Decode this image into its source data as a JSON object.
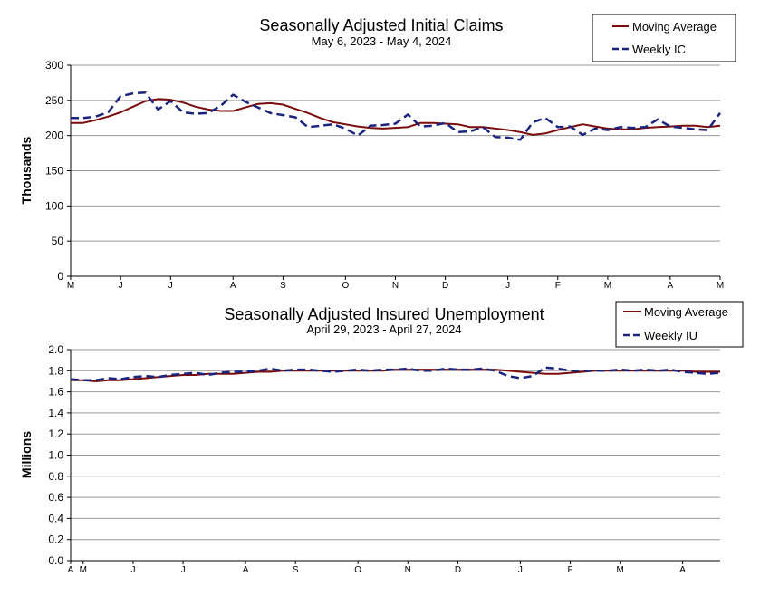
{
  "chart_data": [
    {
      "type": "line",
      "title": "Seasonally Adjusted Initial Claims",
      "subtitle": "May 6, 2023 - May 4, 2024",
      "xlabel": "",
      "ylabel": "Thousands",
      "ylim": [
        0,
        300
      ],
      "yticks": [
        "0",
        "50",
        "100",
        "150",
        "200",
        "250",
        "300"
      ],
      "ytick_values": [
        0,
        50,
        100,
        150,
        200,
        250,
        300
      ],
      "xtick_labels": [
        "M",
        "J",
        "J",
        "A",
        "S",
        "O",
        "N",
        "D",
        "J",
        "F",
        "M",
        "A",
        "M"
      ],
      "xtick_weeks": [
        0,
        4,
        8,
        13,
        17,
        22,
        26,
        30,
        35,
        39,
        43,
        48,
        52
      ],
      "num_weeks": 53,
      "grid": true,
      "legend": [
        "Moving Average",
        "Weekly IC"
      ],
      "series": [
        {
          "name": "Moving Average",
          "color": "#7a0c0c",
          "style": "solid",
          "values": [
            218,
            218,
            222,
            227,
            233,
            241,
            249,
            252,
            251,
            247,
            241,
            237,
            235,
            235,
            240,
            245,
            246,
            244,
            238,
            232,
            225,
            219,
            216,
            213,
            211,
            210,
            211,
            212,
            218,
            218,
            217,
            216,
            212,
            212,
            210,
            208,
            205,
            201,
            203,
            208,
            212,
            216,
            213,
            210,
            209,
            209,
            211,
            212,
            213,
            214,
            214,
            212,
            214
          ]
        },
        {
          "name": "Weekly IC",
          "color": "#1a237e",
          "style": "dashed",
          "values": [
            225,
            225,
            227,
            233,
            256,
            260,
            261,
            237,
            249,
            233,
            231,
            232,
            242,
            258,
            248,
            240,
            232,
            229,
            226,
            212,
            214,
            216,
            210,
            200,
            214,
            215,
            217,
            230,
            213,
            214,
            218,
            205,
            206,
            212,
            198,
            197,
            194,
            219,
            225,
            212,
            213,
            201,
            210,
            208,
            212,
            211,
            212,
            223,
            213,
            211,
            209,
            208,
            232
          ]
        }
      ]
    },
    {
      "type": "line",
      "title": "Seasonally Adjusted Insured Unemployment",
      "subtitle": "April 29, 2023 - April 27, 2024",
      "xlabel": "",
      "ylabel": "Millions",
      "ylim": [
        0.0,
        2.0
      ],
      "yticks": [
        "0.0",
        "0.2",
        "0.4",
        "0.6",
        "0.8",
        "1.0",
        "1.2",
        "1.4",
        "1.6",
        "1.8",
        "2.0"
      ],
      "ytick_values": [
        0.0,
        0.2,
        0.4,
        0.6,
        0.8,
        1.0,
        1.2,
        1.4,
        1.6,
        1.8,
        2.0
      ],
      "xtick_labels": [
        "A",
        "M",
        "J",
        "J",
        "A",
        "S",
        "O",
        "N",
        "D",
        "J",
        "F",
        "M",
        "A"
      ],
      "xtick_weeks": [
        0,
        1,
        5,
        9,
        14,
        18,
        23,
        27,
        31,
        36,
        40,
        44,
        49
      ],
      "num_weeks": 53,
      "grid": true,
      "legend": [
        "Moving Average",
        "Weekly IU"
      ],
      "series": [
        {
          "name": "Moving Average",
          "color": "#7a0c0c",
          "style": "solid",
          "values": [
            1.71,
            1.71,
            1.7,
            1.71,
            1.71,
            1.72,
            1.73,
            1.74,
            1.75,
            1.76,
            1.76,
            1.77,
            1.77,
            1.77,
            1.78,
            1.79,
            1.79,
            1.8,
            1.8,
            1.8,
            1.8,
            1.8,
            1.8,
            1.8,
            1.8,
            1.8,
            1.81,
            1.81,
            1.81,
            1.81,
            1.81,
            1.81,
            1.81,
            1.81,
            1.81,
            1.8,
            1.79,
            1.78,
            1.77,
            1.77,
            1.78,
            1.79,
            1.8,
            1.8,
            1.8,
            1.8,
            1.8,
            1.8,
            1.8,
            1.8,
            1.79,
            1.79,
            1.79
          ]
        },
        {
          "name": "Weekly IU",
          "color": "#1a237e",
          "style": "dashed",
          "values": [
            1.72,
            1.71,
            1.71,
            1.73,
            1.72,
            1.74,
            1.75,
            1.74,
            1.76,
            1.77,
            1.78,
            1.76,
            1.78,
            1.79,
            1.79,
            1.8,
            1.82,
            1.8,
            1.81,
            1.81,
            1.8,
            1.79,
            1.8,
            1.81,
            1.8,
            1.81,
            1.81,
            1.82,
            1.8,
            1.8,
            1.82,
            1.81,
            1.81,
            1.82,
            1.8,
            1.75,
            1.73,
            1.75,
            1.83,
            1.82,
            1.8,
            1.8,
            1.8,
            1.8,
            1.81,
            1.8,
            1.81,
            1.8,
            1.81,
            1.79,
            1.78,
            1.77,
            1.78
          ]
        }
      ]
    }
  ]
}
